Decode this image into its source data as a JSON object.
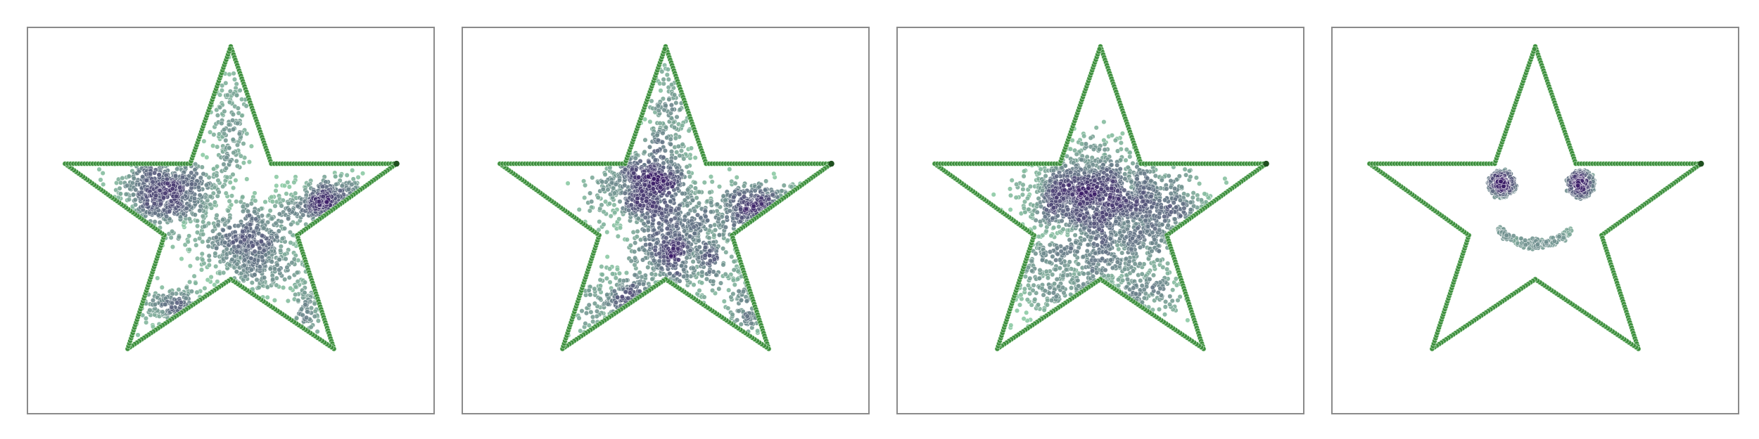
{
  "chart_data": [
    {
      "type": "scatter",
      "title": "",
      "xlim": [
        -1.1,
        1.1
      ],
      "ylim": [
        -1.05,
        1.05
      ],
      "grid": false,
      "axes_visible": false,
      "boundary": {
        "shape": "star",
        "vertices": [
          [
            0,
            0.95
          ],
          [
            0.22,
            0.31
          ],
          [
            0.9,
            0.31
          ],
          [
            0.36,
            -0.08
          ],
          [
            0.56,
            -0.7
          ],
          [
            0,
            -0.32
          ],
          [
            -0.56,
            -0.7
          ],
          [
            -0.36,
            -0.08
          ],
          [
            -0.9,
            0.31
          ],
          [
            -0.22,
            0.31
          ]
        ],
        "color": "#3e8f3e"
      },
      "clusters": [
        {
          "center": [
            -0.36,
            0.16
          ],
          "spread": [
            0.14,
            0.1
          ],
          "count": 650
        },
        {
          "center": [
            0.1,
            -0.15
          ],
          "spread": [
            0.14,
            0.12
          ],
          "count": 600
        },
        {
          "center": [
            0.55,
            0.1
          ],
          "spread": [
            0.14,
            0.07
          ],
          "count": 320
        },
        {
          "center": [
            -0.3,
            -0.48
          ],
          "spread": [
            0.18,
            0.06
          ],
          "count": 150
        },
        {
          "center": [
            0.0,
            0.52
          ],
          "spread": [
            0.06,
            0.2
          ],
          "count": 160
        },
        {
          "center": [
            0.42,
            -0.45
          ],
          "spread": [
            0.05,
            0.14
          ],
          "count": 90
        }
      ],
      "colormap": {
        "low": "#8ccaa4",
        "high": "#3a1a66"
      }
    },
    {
      "type": "scatter",
      "title": "",
      "xlim": [
        -1.1,
        1.1
      ],
      "ylim": [
        -1.05,
        1.05
      ],
      "grid": false,
      "axes_visible": false,
      "boundary": {
        "shape": "star",
        "vertices": [
          [
            0,
            0.95
          ],
          [
            0.22,
            0.31
          ],
          [
            0.9,
            0.31
          ],
          [
            0.36,
            -0.08
          ],
          [
            0.56,
            -0.7
          ],
          [
            0,
            -0.32
          ],
          [
            -0.56,
            -0.7
          ],
          [
            -0.36,
            -0.08
          ],
          [
            -0.9,
            0.31
          ],
          [
            -0.22,
            0.31
          ]
        ],
        "color": "#3e8f3e"
      },
      "clusters": [
        {
          "center": [
            -0.12,
            0.18
          ],
          "spread": [
            0.13,
            0.1
          ],
          "count": 600
        },
        {
          "center": [
            0.08,
            -0.15
          ],
          "spread": [
            0.14,
            0.12
          ],
          "count": 560
        },
        {
          "center": [
            0.5,
            0.08
          ],
          "spread": [
            0.14,
            0.07
          ],
          "count": 280
        },
        {
          "center": [
            -0.2,
            -0.42
          ],
          "spread": [
            0.2,
            0.09
          ],
          "count": 210
        },
        {
          "center": [
            0.02,
            0.52
          ],
          "spread": [
            0.06,
            0.2
          ],
          "count": 180
        },
        {
          "center": [
            0.44,
            -0.45
          ],
          "spread": [
            0.05,
            0.14
          ],
          "count": 90
        }
      ],
      "colormap": {
        "low": "#8ccaa4",
        "high": "#3a1a66"
      }
    },
    {
      "type": "scatter",
      "title": "",
      "xlim": [
        -1.1,
        1.1
      ],
      "ylim": [
        -1.05,
        1.05
      ],
      "grid": false,
      "axes_visible": false,
      "boundary": {
        "shape": "star",
        "vertices": [
          [
            0,
            0.95
          ],
          [
            0.22,
            0.31
          ],
          [
            0.9,
            0.31
          ],
          [
            0.36,
            -0.08
          ],
          [
            0.56,
            -0.7
          ],
          [
            0,
            -0.32
          ],
          [
            -0.56,
            -0.7
          ],
          [
            -0.36,
            -0.08
          ],
          [
            -0.9,
            0.31
          ],
          [
            -0.22,
            0.31
          ]
        ],
        "color": "#3e8f3e"
      },
      "clusters": [
        {
          "center": [
            -0.15,
            0.14
          ],
          "spread": [
            0.14,
            0.1
          ],
          "count": 560
        },
        {
          "center": [
            0.12,
            0.0
          ],
          "spread": [
            0.16,
            0.13
          ],
          "count": 520
        },
        {
          "center": [
            0.3,
            0.1
          ],
          "spread": [
            0.17,
            0.08
          ],
          "count": 260
        },
        {
          "center": [
            -0.2,
            -0.3
          ],
          "spread": [
            0.18,
            0.16
          ],
          "count": 360
        },
        {
          "center": [
            0.05,
            0.3
          ],
          "spread": [
            0.18,
            0.08
          ],
          "count": 220
        },
        {
          "center": [
            0.18,
            -0.38
          ],
          "spread": [
            0.16,
            0.12
          ],
          "count": 180
        }
      ],
      "colormap": {
        "low": "#8ccaa4",
        "high": "#3a1a66"
      }
    },
    {
      "type": "scatter",
      "title": "",
      "xlim": [
        -1.1,
        1.1
      ],
      "ylim": [
        -1.05,
        1.05
      ],
      "grid": false,
      "axes_visible": false,
      "boundary": {
        "shape": "star",
        "vertices": [
          [
            0,
            0.95
          ],
          [
            0.22,
            0.31
          ],
          [
            0.9,
            0.31
          ],
          [
            0.36,
            -0.08
          ],
          [
            0.56,
            -0.7
          ],
          [
            0,
            -0.32
          ],
          [
            -0.56,
            -0.7
          ],
          [
            -0.36,
            -0.08
          ],
          [
            -0.9,
            0.31
          ],
          [
            -0.22,
            0.31
          ]
        ],
        "color": "#3e8f3e"
      },
      "face": {
        "left_eye": {
          "center": [
            -0.18,
            0.2
          ],
          "radius": 0.075
        },
        "right_eye": {
          "center": [
            0.25,
            0.2
          ],
          "radius": 0.075
        },
        "smile": {
          "center": [
            0.0,
            -0.05
          ],
          "half_width": 0.2,
          "depth": 0.08
        }
      },
      "colormap": {
        "low": "#8ccaa4",
        "high": "#3a1a66"
      }
    }
  ]
}
